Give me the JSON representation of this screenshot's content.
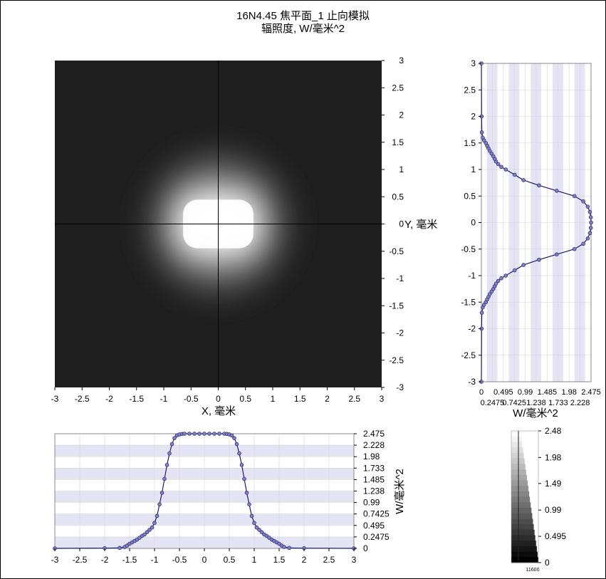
{
  "title": "16N4.45 焦平面_1 止向模拟",
  "subtitle": "辐照度, W/毫米^2",
  "chart_data": [
    {
      "type": "heatmap",
      "name": "irradiance-map",
      "xlabel": "X, 毫米",
      "ylabel": "Y, 毫米",
      "xlim": [
        -3,
        3
      ],
      "ylim": [
        -3,
        3
      ],
      "xticks": [
        "-3",
        "-2.5",
        "-2",
        "-1.5",
        "-1",
        "-0.5",
        "0",
        "0.5",
        "1",
        "1.5",
        "2",
        "2.5",
        "3"
      ],
      "yticks": [
        "3",
        "2.5",
        "2",
        "1.5",
        "1",
        "0.5",
        "0",
        "-0.5",
        "-1",
        "-1.5",
        "-2",
        "-2.5",
        "-3"
      ],
      "spot": {
        "center_x": 0,
        "center_y": 0,
        "core_half_width_x": 0.75,
        "core_half_width_y": 0.55,
        "halo_radius": 1.6
      },
      "crosshair": {
        "x": 0,
        "y": 0
      }
    },
    {
      "type": "line",
      "name": "y-profile",
      "orientation": "vertical",
      "xlabel": "W/毫米^2",
      "xlim": [
        0,
        2.475
      ],
      "ylim": [
        -3,
        3
      ],
      "xticks_top": [
        "0",
        "0.495",
        "0.99",
        "1.485",
        "1.98",
        "2.475"
      ],
      "xticks_bottom": [
        "0.2475",
        "0.7425",
        "1.238",
        "1.733",
        "2.228"
      ],
      "yticks": [
        "3",
        "2.5",
        "2",
        "1.5",
        "1",
        "0.5",
        "0",
        "-0.5",
        "-1",
        "-1.5",
        "-2",
        "-2.5",
        "-3"
      ],
      "x": [
        0,
        0.005,
        0.01,
        0.03,
        0.06,
        0.1,
        0.13,
        0.16,
        0.19,
        0.23,
        0.27,
        0.3,
        0.33,
        0.38,
        0.45,
        0.55,
        0.75,
        0.95,
        1.3,
        1.7,
        2.1,
        2.3,
        2.4,
        2.45,
        2.47,
        2.475,
        2.47,
        2.45,
        2.4,
        2.3,
        2.1,
        1.7,
        1.3,
        0.95,
        0.75,
        0.55,
        0.45,
        0.38,
        0.33,
        0.3,
        0.27,
        0.23,
        0.19,
        0.16,
        0.13,
        0.1,
        0.06,
        0.03,
        0.01,
        0.005,
        0
      ],
      "y": [
        -3,
        -2,
        -1.7,
        -1.6,
        -1.55,
        -1.5,
        -1.45,
        -1.4,
        -1.35,
        -1.3,
        -1.25,
        -1.2,
        -1.15,
        -1.1,
        -1.05,
        -1.0,
        -0.9,
        -0.8,
        -0.7,
        -0.6,
        -0.5,
        -0.4,
        -0.3,
        -0.2,
        -0.1,
        0,
        0.1,
        0.2,
        0.3,
        0.4,
        0.5,
        0.6,
        0.7,
        0.8,
        0.9,
        1.0,
        1.05,
        1.1,
        1.15,
        1.2,
        1.25,
        1.3,
        1.35,
        1.4,
        1.45,
        1.5,
        1.55,
        1.6,
        1.7,
        2,
        3
      ]
    },
    {
      "type": "line",
      "name": "x-profile",
      "ylabel": "W/毫米^2",
      "xlim": [
        -3,
        3
      ],
      "ylim": [
        0,
        2.475
      ],
      "xticks": [
        "-3",
        "-2.5",
        "-2",
        "-1.5",
        "-1",
        "-0.5",
        "0",
        "0.5",
        "1",
        "1.5",
        "2",
        "2.5",
        "3"
      ],
      "yticks": [
        "2.475",
        "2.228",
        "1.98",
        "1.733",
        "1.485",
        "1.238",
        "0.99",
        "0.7425",
        "0.495",
        "0.2475",
        "0"
      ],
      "x": [
        -3,
        -2,
        -1.7,
        -1.6,
        -1.55,
        -1.5,
        -1.45,
        -1.4,
        -1.35,
        -1.3,
        -1.25,
        -1.2,
        -1.15,
        -1.1,
        -1.05,
        -1.0,
        -0.95,
        -0.9,
        -0.85,
        -0.8,
        -0.75,
        -0.7,
        -0.65,
        -0.6,
        -0.55,
        -0.5,
        -0.45,
        -0.4,
        -0.3,
        -0.2,
        -0.1,
        0,
        0.1,
        0.2,
        0.3,
        0.4,
        0.45,
        0.5,
        0.55,
        0.6,
        0.65,
        0.7,
        0.75,
        0.8,
        0.85,
        0.9,
        0.95,
        1.0,
        1.05,
        1.1,
        1.15,
        1.2,
        1.25,
        1.3,
        1.35,
        1.4,
        1.45,
        1.5,
        1.55,
        1.6,
        1.7,
        2,
        3
      ],
      "y": [
        0,
        0.005,
        0.01,
        0.03,
        0.06,
        0.1,
        0.13,
        0.16,
        0.19,
        0.23,
        0.27,
        0.3,
        0.35,
        0.4,
        0.45,
        0.55,
        0.7,
        0.95,
        1.2,
        1.5,
        1.8,
        2.05,
        2.25,
        2.38,
        2.44,
        2.46,
        2.47,
        2.475,
        2.475,
        2.475,
        2.475,
        2.475,
        2.475,
        2.475,
        2.475,
        2.475,
        2.47,
        2.46,
        2.44,
        2.38,
        2.25,
        2.05,
        1.8,
        1.5,
        1.2,
        0.95,
        0.7,
        0.55,
        0.45,
        0.4,
        0.35,
        0.3,
        0.27,
        0.23,
        0.19,
        0.16,
        0.13,
        0.1,
        0.06,
        0.03,
        0.01,
        0.005,
        0
      ]
    },
    {
      "type": "heatmap",
      "name": "colorbar",
      "ticks": [
        "2.48",
        "1.98",
        "1.49",
        "0.99",
        "0.495",
        "0"
      ],
      "values": [
        2.48,
        1.98,
        1.49,
        0.99,
        0.495,
        0
      ],
      "footnote": "11600"
    }
  ]
}
